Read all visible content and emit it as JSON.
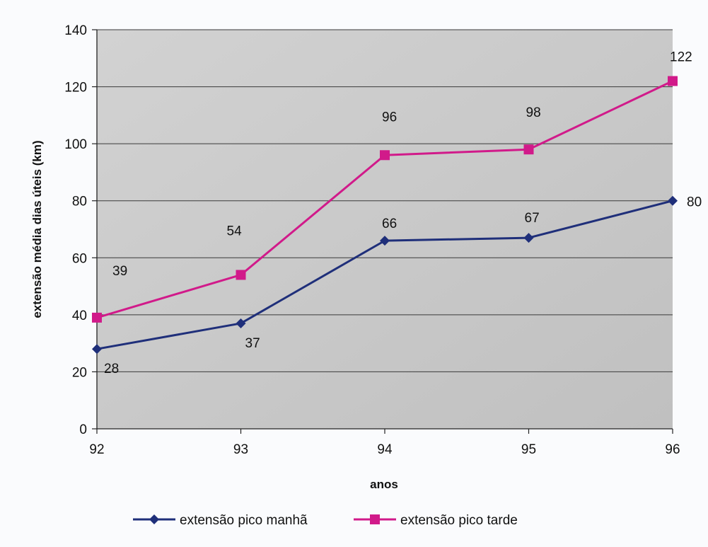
{
  "chart_data": {
    "type": "line",
    "categories": [
      "92",
      "93",
      "94",
      "95",
      "96"
    ],
    "series": [
      {
        "name": "extensão pico manhã",
        "values": [
          28,
          37,
          66,
          67,
          80
        ],
        "color": "#1f2f7a",
        "marker": "diamond"
      },
      {
        "name": "extensão pico tarde",
        "values": [
          39,
          54,
          96,
          98,
          122
        ],
        "color": "#d11a8a",
        "marker": "square"
      }
    ],
    "data_labels": [
      [
        "28",
        "37",
        "66",
        "67",
        "80"
      ],
      [
        "39",
        "54",
        "96",
        "98",
        "122"
      ]
    ],
    "xlabel": "anos",
    "ylabel": "extensão média dias úteis (km)",
    "ylim": [
      0,
      140
    ],
    "yticks": [
      "0",
      "20",
      "40",
      "60",
      "80",
      "100",
      "120",
      "140"
    ],
    "grid": true,
    "legend_position": "bottom",
    "plot_background": "#c9c9c9"
  }
}
